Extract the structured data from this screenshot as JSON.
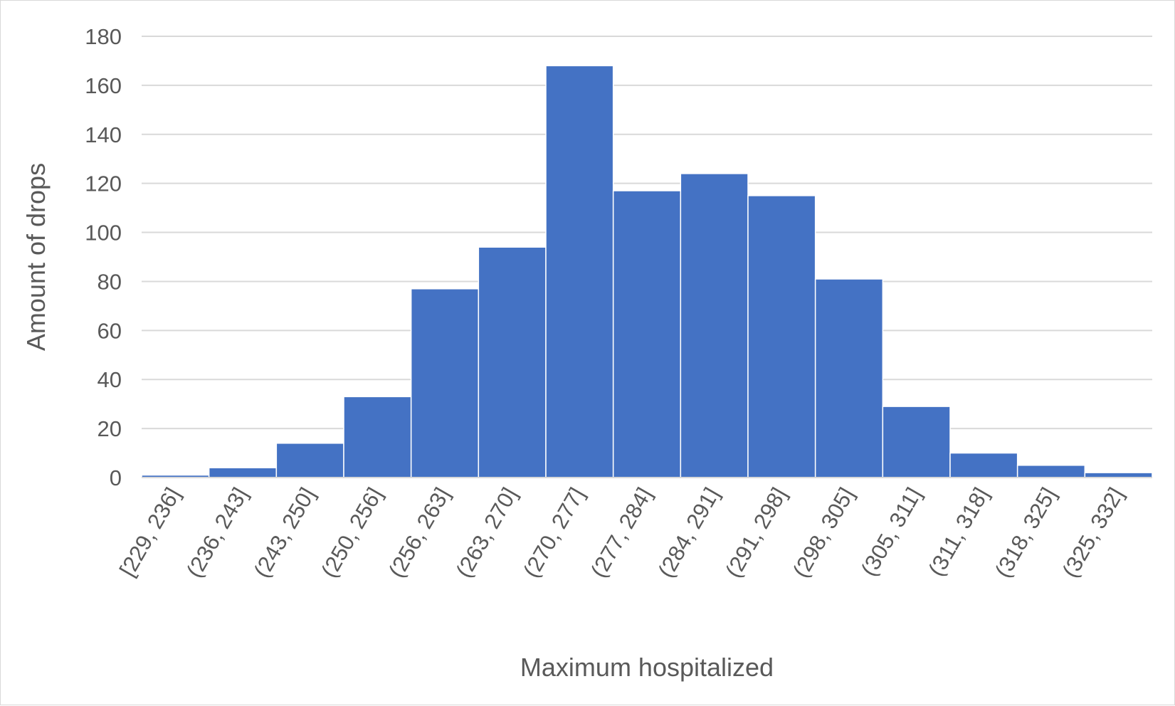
{
  "chart_data": {
    "type": "bar",
    "title": "",
    "xlabel": "Maximum hospitalized",
    "ylabel": "Amount of drops",
    "categories": [
      "[229, 236]",
      "(236, 243]",
      "(243, 250]",
      "(250, 256]",
      "(256, 263]",
      "(263, 270]",
      "(270, 277]",
      "(277, 284]",
      "(284, 291]",
      "(291, 298]",
      "(298, 305]",
      "(305, 311]",
      "(311, 318]",
      "(318, 325]",
      "(325, 332]"
    ],
    "values": [
      1,
      4,
      14,
      33,
      77,
      94,
      168,
      117,
      124,
      115,
      81,
      29,
      10,
      5,
      2
    ],
    "ylim": [
      0,
      180
    ],
    "yticks": [
      "0",
      "20",
      "40",
      "60",
      "80",
      "100",
      "120",
      "140",
      "160",
      "180"
    ],
    "grid": true,
    "legend": "none",
    "bar_color": "#4472c4",
    "gridline_color": "#d9d9d9"
  }
}
